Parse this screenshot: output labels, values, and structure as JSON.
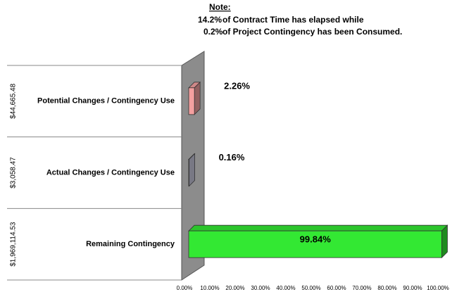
{
  "chart_data": {
    "type": "bar3d",
    "note": {
      "heading": "Note:",
      "time_pct": "14.2%",
      "time_text": "of Contract Time has elapsed while",
      "cont_pct": "0.2%",
      "cont_text": "of  Project Contingency has been Consumed."
    },
    "categories": [
      "Potential Changes / Contingency Use",
      "Actual Changes / Contingency Use",
      "Remaining Contingency"
    ],
    "amounts": [
      "$44,665.48",
      "$3,058.47",
      "$1,969,114.53"
    ],
    "values": [
      2.26,
      0.16,
      99.84
    ],
    "value_labels": [
      "2.26%",
      "0.16%",
      "99.84%"
    ],
    "colors": [
      "#f4a0a0",
      "#c8c8dc",
      "#33e833"
    ],
    "xlim": [
      0,
      100
    ],
    "xticks": [
      {
        "value": 0,
        "label": "0.00%"
      },
      {
        "value": 10,
        "label": "10.00%"
      },
      {
        "value": 20,
        "label": "20.00%"
      },
      {
        "value": 30,
        "label": "30.00%"
      },
      {
        "value": 40,
        "label": "40.00%"
      },
      {
        "value": 50,
        "label": "50.00%"
      },
      {
        "value": 60,
        "label": "60.00%"
      },
      {
        "value": 70,
        "label": "70.00%"
      },
      {
        "value": 80,
        "label": "80.00%"
      },
      {
        "value": 90,
        "label": "90.00%"
      },
      {
        "value": 100,
        "label": "100.00%"
      }
    ]
  }
}
